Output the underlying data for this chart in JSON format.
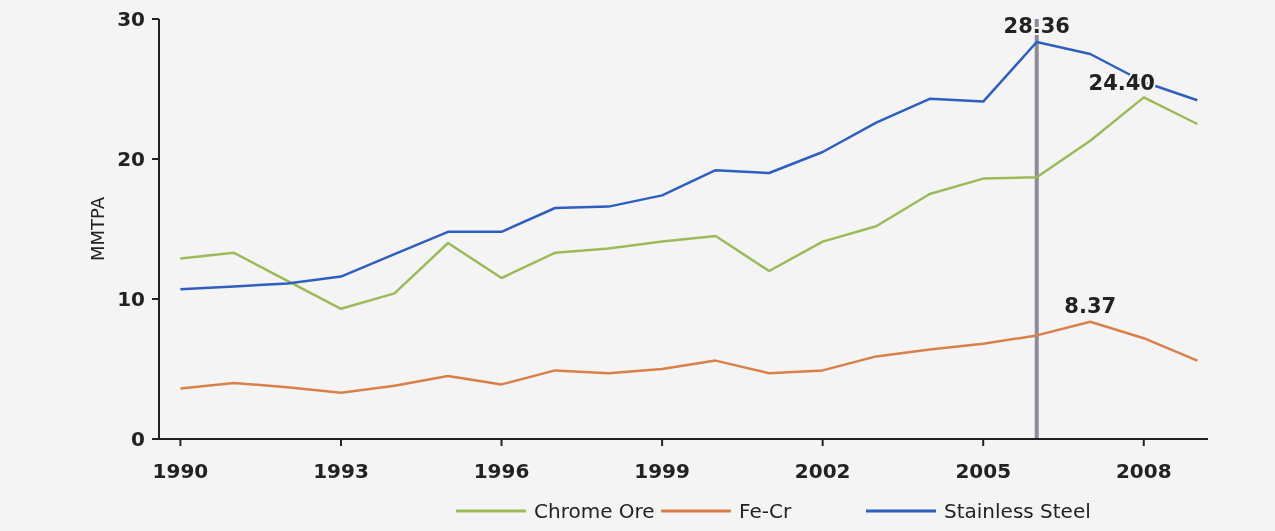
{
  "chart_data": {
    "type": "line",
    "ylabel": "MMTPA",
    "x": [
      1990,
      1991,
      1992,
      1993,
      1994,
      1995,
      1996,
      1997,
      1998,
      1999,
      2000,
      2001,
      2002,
      2003,
      2004,
      2005,
      2006,
      2007,
      2008,
      2009
    ],
    "series": [
      {
        "name": "Chrome Ore",
        "color": "#9bbb59",
        "values": [
          12.9,
          13.3,
          11.3,
          9.3,
          10.4,
          14.0,
          11.5,
          13.3,
          13.6,
          14.1,
          14.5,
          12.0,
          14.1,
          15.2,
          17.5,
          18.6,
          18.7,
          21.3,
          24.4,
          22.5
        ],
        "value_labels": [
          null,
          null,
          null,
          null,
          null,
          null,
          null,
          null,
          null,
          null,
          null,
          null,
          null,
          null,
          null,
          null,
          null,
          null,
          "24.40",
          null
        ]
      },
      {
        "name": "Fe-Cr",
        "color": "#d9804a",
        "values": [
          3.6,
          4.0,
          3.7,
          3.3,
          3.8,
          4.5,
          3.9,
          4.9,
          4.7,
          5.0,
          5.6,
          4.7,
          4.9,
          5.9,
          6.4,
          6.8,
          7.4,
          8.37,
          7.2,
          5.6
        ],
        "value_labels": [
          null,
          null,
          null,
          null,
          null,
          null,
          null,
          null,
          null,
          null,
          null,
          null,
          null,
          null,
          null,
          null,
          null,
          "8.37",
          null,
          null
        ]
      },
      {
        "name": "Stainless Steel",
        "color": "#2e5fbf",
        "values": [
          10.7,
          10.9,
          11.1,
          11.6,
          13.2,
          14.8,
          14.8,
          16.5,
          16.6,
          17.4,
          19.2,
          19.0,
          20.5,
          22.6,
          24.3,
          24.1,
          28.36,
          27.5,
          25.5,
          24.2
        ],
        "value_labels": [
          null,
          null,
          null,
          null,
          null,
          null,
          null,
          null,
          null,
          null,
          null,
          null,
          null,
          null,
          null,
          null,
          "28.36",
          null,
          null,
          null
        ]
      }
    ],
    "xlim": [
      1989.6,
      2009.2
    ],
    "xticks": [
      1990,
      1993,
      1996,
      1999,
      2002,
      2005,
      2008
    ],
    "ylim": [
      0,
      30
    ],
    "yticks": [
      0,
      10,
      20,
      30
    ],
    "ref_lines": [
      {
        "axis": "x",
        "value": 2006,
        "color": "#8c8c99"
      }
    ],
    "legend": "bottom",
    "marker": "none",
    "line_style": "solid"
  }
}
